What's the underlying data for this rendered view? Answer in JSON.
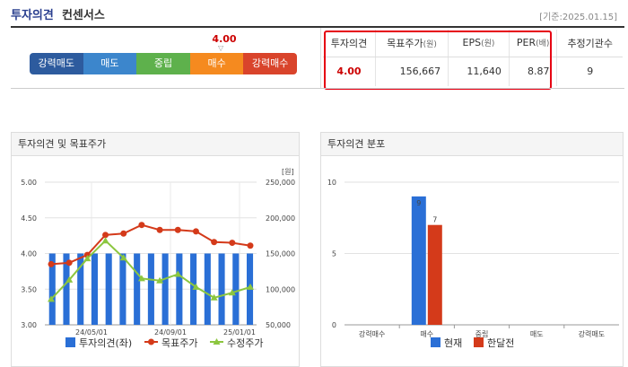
{
  "header": {
    "title_main": "투자의견",
    "title_sub": "컨센서스",
    "as_of": "[기준:2025.01.15]"
  },
  "scale": {
    "segments": [
      "강력매도",
      "매도",
      "중립",
      "매수",
      "강력매수"
    ],
    "value": "4.00",
    "marker": "▽",
    "colors": [
      "#2d5b9e",
      "#3c86cc",
      "#5eb14c",
      "#f58a1f",
      "#d9442b"
    ]
  },
  "table": {
    "headers": [
      {
        "label": "투자의견",
        "unit": ""
      },
      {
        "label": "목표주가",
        "unit": "(원)"
      },
      {
        "label": "EPS",
        "unit": "(원)"
      },
      {
        "label": "PER",
        "unit": "(배)"
      },
      {
        "label": "추정기관수",
        "unit": ""
      }
    ],
    "values": [
      "4.00",
      "156,667",
      "11,640",
      "8.87",
      "9"
    ]
  },
  "panels": {
    "left_title": "투자의견 및 목표주가",
    "right_title": "투자의견 분포"
  },
  "chart_data": [
    {
      "type": "bar+line",
      "title": "투자의견 및 목표주가",
      "x_ticks": [
        "24/05/01",
        "24/09/01",
        "25/01/01"
      ],
      "y_left": {
        "label": "",
        "ticks": [
          "5.00",
          "4.50",
          "4.00",
          "3.50",
          "3.00"
        ],
        "range": [
          3.0,
          5.0
        ]
      },
      "y_right": {
        "label": "[원]",
        "ticks": [
          "250,000",
          "200,000",
          "150,000",
          "100,000",
          "50,000"
        ],
        "range": [
          50000,
          250000
        ]
      },
      "series": [
        {
          "name": "투자의견(좌)",
          "type": "bar",
          "color": "#2a6fd6",
          "values": [
            4,
            4,
            4,
            4,
            4,
            4,
            4,
            4,
            4,
            4,
            4,
            4,
            4,
            4,
            4
          ]
        },
        {
          "name": "목표주가",
          "type": "line",
          "color": "#d43a1a",
          "values": [
            135000,
            137000,
            148000,
            176000,
            178000,
            190000,
            183000,
            183000,
            181000,
            166000,
            165000,
            161000
          ]
        },
        {
          "name": "수정주가",
          "type": "line",
          "color": "#8cc63f",
          "values": [
            86000,
            113000,
            143000,
            168000,
            144000,
            115000,
            112000,
            121000,
            103000,
            88000,
            95000,
            103000
          ]
        }
      ],
      "legend": [
        "투자의견(좌)",
        "목표주가",
        "수정주가"
      ]
    },
    {
      "type": "bar",
      "title": "투자의견 분포",
      "categories": [
        "강력매수",
        "매수",
        "중립",
        "매도",
        "강력매도"
      ],
      "ylim": [
        0,
        10
      ],
      "y_ticks": [
        "10",
        "5",
        "0"
      ],
      "series": [
        {
          "name": "현재",
          "color": "#2a6fd6",
          "values": [
            0,
            9,
            0,
            0,
            0
          ]
        },
        {
          "name": "한달전",
          "color": "#d43a1a",
          "values": [
            0,
            7,
            0,
            0,
            0
          ]
        }
      ],
      "data_labels": [
        "9",
        "7"
      ],
      "legend": [
        "현재",
        "한달전"
      ]
    }
  ]
}
